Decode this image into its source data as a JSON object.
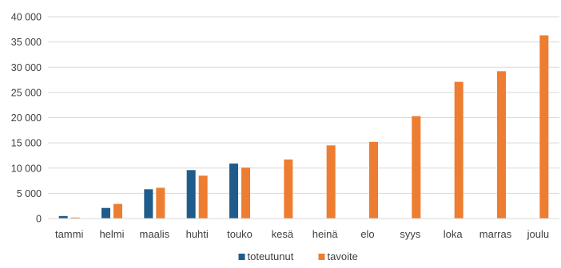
{
  "chart_data": {
    "type": "bar",
    "title": "",
    "xlabel": "",
    "ylabel": "",
    "ylim": [
      0,
      40000
    ],
    "yticks": [
      0,
      5000,
      10000,
      15000,
      20000,
      25000,
      30000,
      35000,
      40000
    ],
    "ytick_labels": [
      "0",
      "5 000",
      "10 000",
      "15 000",
      "20 000",
      "25 000",
      "30 000",
      "35 000",
      "40 000"
    ],
    "grid": true,
    "legend_position": "bottom",
    "categories": [
      "tammi",
      "helmi",
      "maalis",
      "huhti",
      "touko",
      "kesä",
      "heinä",
      "elo",
      "syys",
      "loka",
      "marras",
      "joulu"
    ],
    "series": [
      {
        "name": "toteutunut",
        "color": "#1f5c8b",
        "values": [
          500,
          2100,
          5800,
          9600,
          10900,
          null,
          null,
          null,
          null,
          null,
          null,
          null
        ]
      },
      {
        "name": "tavoite",
        "color": "#ed7d31",
        "values": [
          200,
          2900,
          6100,
          8500,
          10100,
          11700,
          14500,
          15200,
          20300,
          27100,
          29200,
          36300
        ]
      }
    ]
  }
}
